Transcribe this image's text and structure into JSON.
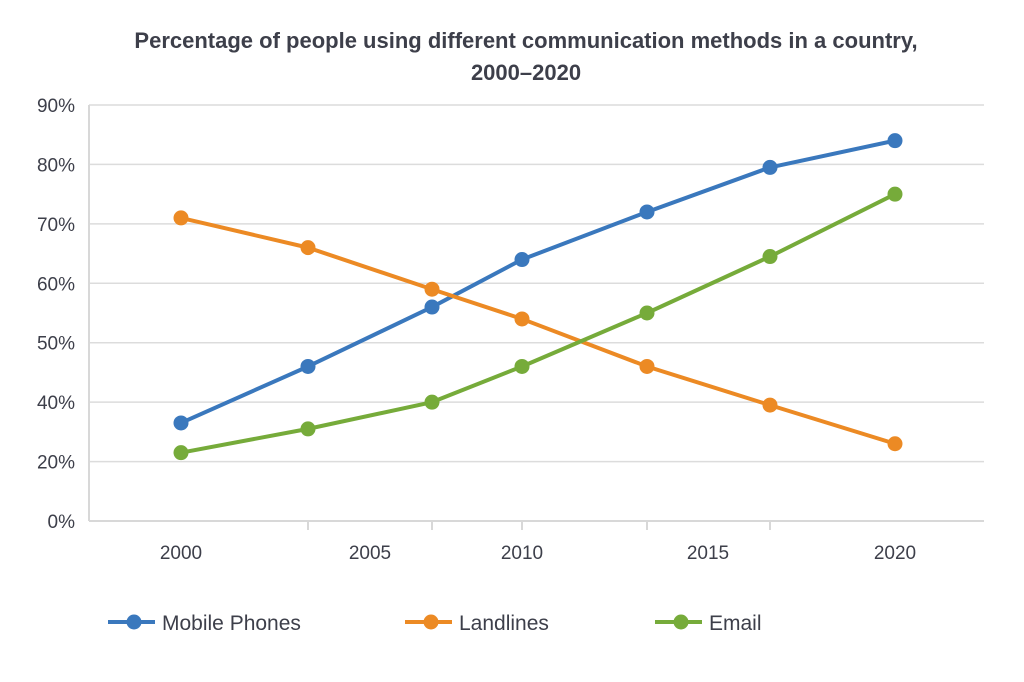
{
  "chart_data": {
    "type": "line",
    "title": "Percentage of people using different communication methods in a country,",
    "subtitle": "2000–2020",
    "xlabel": "",
    "ylabel": "",
    "y_tick_labels": [
      "90%",
      "80%",
      "70%",
      "60%",
      "50%",
      "40%",
      "20%",
      "0%"
    ],
    "x_tick_labels": [
      "2000",
      "2005",
      "2010",
      "2015",
      "2020"
    ],
    "x": [
      "2000",
      "2003",
      "2007",
      "2010",
      "2013",
      "2017",
      "2020"
    ],
    "ylim": [
      0,
      90
    ],
    "grid": true,
    "legend_position": "bottom",
    "series": [
      {
        "name": "Mobile Phones",
        "color": "#3a78bd",
        "values": [
          33,
          46,
          56,
          64,
          72,
          79.5,
          84
        ]
      },
      {
        "name": "Landlines",
        "color": "#ec8a24",
        "values": [
          71,
          66,
          59,
          54,
          46,
          39,
          26
        ]
      },
      {
        "name": "Email",
        "color": "#76ab3a",
        "values": [
          23,
          31,
          40,
          46,
          55,
          64.5,
          75
        ]
      }
    ]
  }
}
